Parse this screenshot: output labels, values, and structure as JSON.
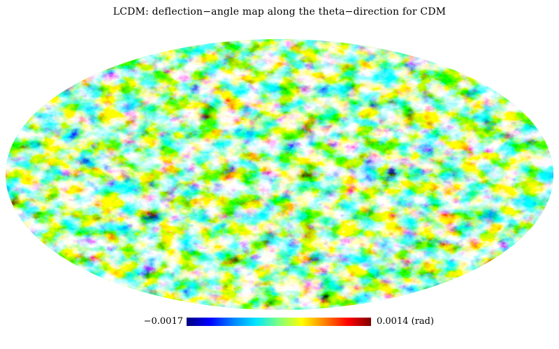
{
  "figure": {
    "title": "LCDM: deflection−angle map along the theta−direction for CDM",
    "projection": "mollweide",
    "colormap": [
      "#00007f",
      "#0000ff",
      "#0080ff",
      "#00e5ff",
      "#7fff7f",
      "#ffff00",
      "#ff8000",
      "#ff0000",
      "#7f0000"
    ],
    "colorbar": {
      "min_label": "−0.0017",
      "max_label": "0.0014 (rad)",
      "min_value": -0.0017,
      "max_value": 0.0014,
      "unit": "rad"
    }
  }
}
